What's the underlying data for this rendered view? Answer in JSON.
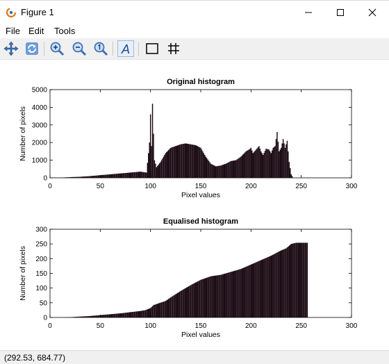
{
  "window": {
    "title": "Figure 1",
    "icon": "octave-logo-icon",
    "controls": [
      "minimize-icon",
      "maximize-icon",
      "close-icon"
    ]
  },
  "menu": {
    "items": [
      "File",
      "Edit",
      "Tools"
    ]
  },
  "toolbar": {
    "buttons": [
      "pan-icon",
      "rotate-icon",
      "zoom-in-icon",
      "zoom-out-icon",
      "zoom-reset-icon",
      "text-annotation-icon",
      "axes-box-icon",
      "grid-icon"
    ]
  },
  "status": {
    "coords": "(292.53, 684.77)"
  },
  "colors": {
    "bars": "#1a0a12",
    "toolbar": "#f0f0f0",
    "accent_icon": "#3b6fb6"
  },
  "chart_data": [
    {
      "type": "bar",
      "title": "Original histogram",
      "xlabel": "Pixel values",
      "ylabel": "Number of pixels",
      "xlim": [
        0,
        300
      ],
      "ylim": [
        0,
        5000
      ],
      "xticks": [
        0,
        50,
        100,
        150,
        200,
        250,
        300
      ],
      "yticks": [
        0,
        1000,
        2000,
        3000,
        4000,
        5000
      ],
      "grid": false,
      "x": [
        0,
        10,
        20,
        30,
        40,
        50,
        60,
        70,
        80,
        90,
        96,
        98,
        99,
        100,
        101,
        102,
        103,
        104,
        106,
        110,
        115,
        120,
        125,
        130,
        135,
        140,
        145,
        150,
        155,
        160,
        165,
        170,
        175,
        180,
        185,
        190,
        195,
        198,
        200,
        202,
        205,
        208,
        210,
        212,
        215,
        218,
        220,
        222,
        224,
        226,
        228,
        230,
        232,
        234,
        236,
        238,
        240,
        242
      ],
      "values": [
        0,
        10,
        40,
        60,
        100,
        150,
        200,
        250,
        300,
        350,
        300,
        1400,
        2000,
        3600,
        1800,
        4200,
        2500,
        1000,
        600,
        900,
        1400,
        1700,
        1800,
        1900,
        1950,
        1900,
        1850,
        1700,
        1200,
        800,
        650,
        700,
        800,
        950,
        1000,
        1200,
        1500,
        1600,
        1700,
        1400,
        1600,
        1800,
        1500,
        1300,
        1650,
        1600,
        1400,
        1700,
        1800,
        2600,
        1500,
        1700,
        2200,
        1700,
        2100,
        900,
        200,
        0
      ]
    },
    {
      "type": "bar",
      "title": "Equalised histogram",
      "xlabel": "Pixel values",
      "ylabel": "Number of pixels",
      "xlim": [
        0,
        300
      ],
      "ylim": [
        0,
        300
      ],
      "xticks": [
        0,
        50,
        100,
        150,
        200,
        250,
        300
      ],
      "yticks": [
        0,
        50,
        100,
        150,
        200,
        250,
        300
      ],
      "grid": false,
      "x": [
        0,
        10,
        20,
        30,
        40,
        50,
        60,
        70,
        80,
        90,
        95,
        100,
        103,
        108,
        115,
        120,
        130,
        140,
        150,
        160,
        170,
        180,
        190,
        200,
        210,
        220,
        230,
        235,
        240,
        245,
        250,
        255,
        256
      ],
      "values": [
        0,
        0,
        1,
        3,
        5,
        8,
        11,
        14,
        18,
        22,
        25,
        32,
        42,
        48,
        56,
        68,
        90,
        110,
        128,
        140,
        145,
        155,
        165,
        180,
        195,
        210,
        228,
        235,
        250,
        254,
        254,
        254,
        254
      ]
    }
  ]
}
